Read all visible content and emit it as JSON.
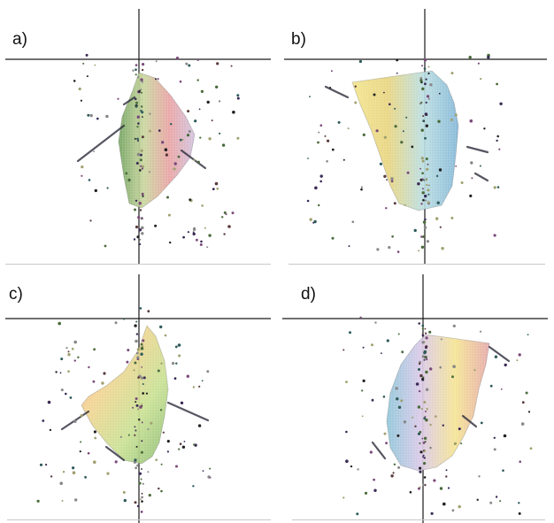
{
  "figure": {
    "panels": [
      {
        "id": "a",
        "label": "a)",
        "hull_colors": [
          "#6fa05a",
          "#c7d49a",
          "#e8a0a0",
          "#cfc0dd"
        ]
      },
      {
        "id": "b",
        "label": "b)",
        "hull_colors": [
          "#f2e48a",
          "#e8d37a",
          "#b8dde0",
          "#7fb4d6"
        ]
      },
      {
        "id": "c",
        "label": "c)",
        "hull_colors": [
          "#e89a9a",
          "#f3d28e",
          "#c7e08f",
          "#86b86d"
        ]
      },
      {
        "id": "d",
        "label": "d)",
        "hull_colors": [
          "#8cc4d8",
          "#d9c7e7",
          "#f4e38f",
          "#e5a6a6"
        ]
      }
    ],
    "point_colors": [
      "#222222",
      "#3a2a55",
      "#5a3a3a",
      "#2f5a5a",
      "#7a4a7a",
      "#4a6a3a",
      "#a0a070",
      "#888888"
    ]
  }
}
